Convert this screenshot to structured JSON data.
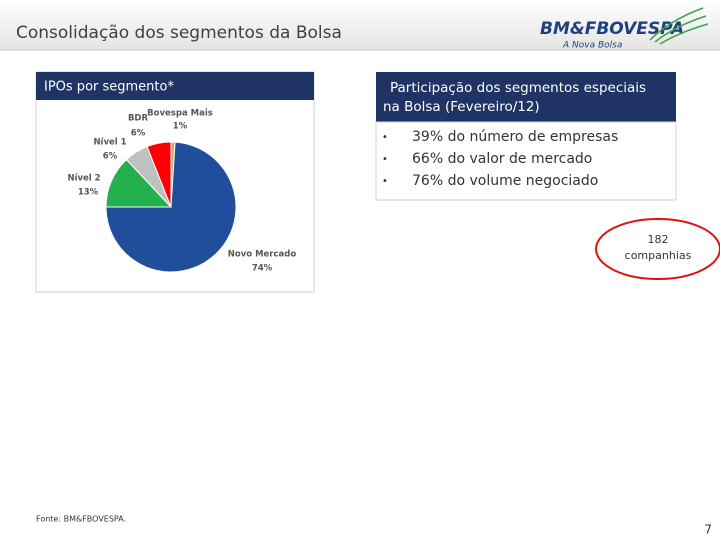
{
  "header": {
    "title": "Consolidação dos segmentos da Bolsa",
    "logo": "BM&FBOVESPA",
    "logo_tagline": "A Nova Bolsa"
  },
  "chart_data": {
    "type": "pie",
    "title": "IPOs  por segmento*",
    "categories": [
      "Bovespa Mais",
      "Novo Mercado",
      "Nível 2",
      "Nível 1",
      "BDR"
    ],
    "values": [
      1,
      74,
      13,
      6,
      6
    ],
    "value_labels": [
      "1%",
      "74%",
      "13%",
      "6%",
      "6%"
    ],
    "colors": [
      "#d9a070",
      "#1f4e9a",
      "#22b14c",
      "#c0c0c0",
      "#ff0000"
    ]
  },
  "panel": {
    "title_lines": [
      "Participação dos segmentos especiais",
      "na Bolsa (Fevereiro/12)"
    ],
    "bullets": [
      "39% do número de empresas",
      "66% do valor de mercado",
      "76% do volume negociado"
    ]
  },
  "callout": {
    "number": "182",
    "label": "companhias"
  },
  "footer": {
    "source": "Fonte: BM&FBOVESPA.",
    "page": "7"
  }
}
